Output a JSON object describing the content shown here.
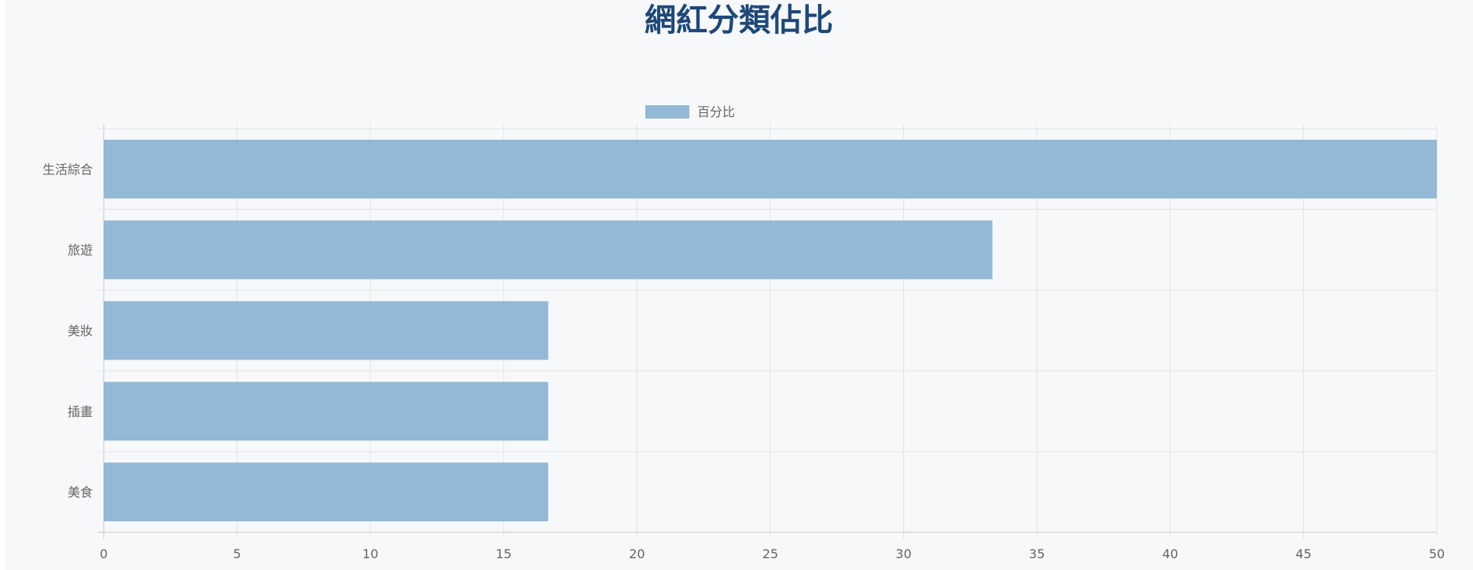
{
  "title": "網紅分類佔比",
  "chart_data": {
    "type": "bar",
    "orientation": "horizontal",
    "title": "網紅分類佔比",
    "categories": [
      "生活綜合",
      "旅遊",
      "美妝",
      "插畫",
      "美食"
    ],
    "series": [
      {
        "name": "百分比",
        "values": [
          50,
          33.33,
          16.67,
          16.67,
          16.67
        ],
        "color": "#93b9d6"
      }
    ],
    "xlim": [
      0,
      50
    ],
    "x_ticks": [
      0,
      5,
      10,
      15,
      20,
      25,
      30,
      35,
      40,
      45,
      50
    ],
    "grid": true,
    "legend": "top-center"
  }
}
